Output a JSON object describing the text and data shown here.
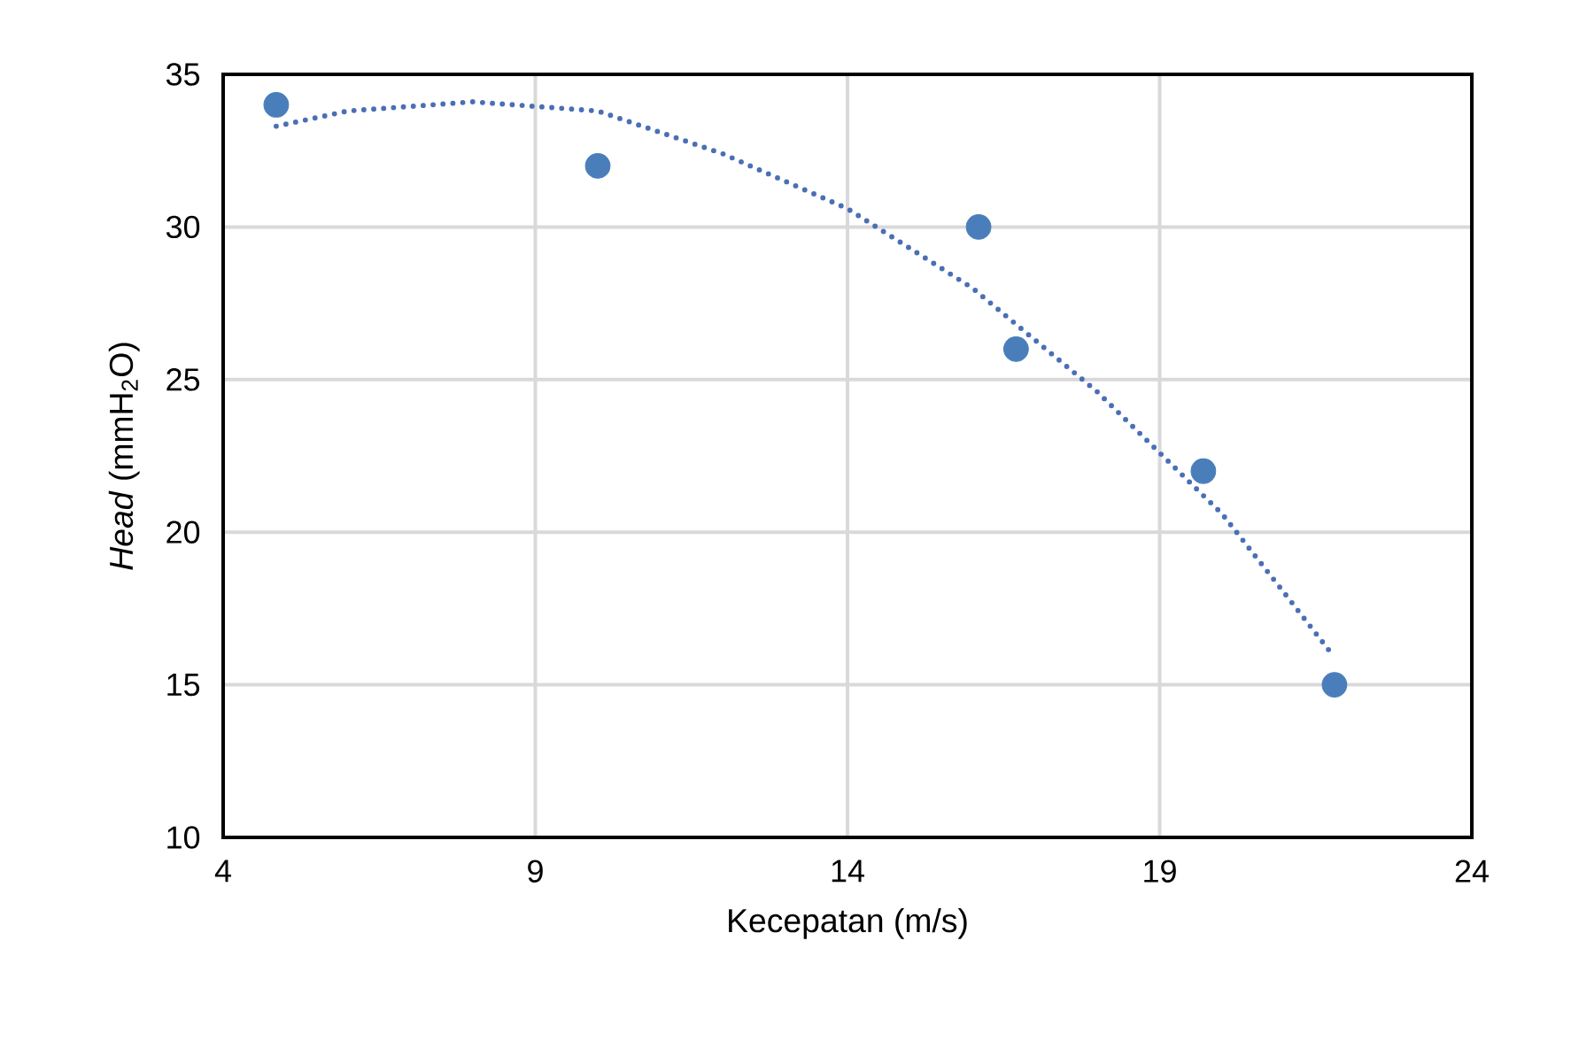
{
  "chart_data": {
    "type": "scatter",
    "xlabel": "Kecepatan (m/s)",
    "ylabel": "*Head* (mmH$_{2}$O)",
    "xlim": [
      4,
      24
    ],
    "xticks": [
      4,
      9,
      14,
      19,
      24
    ],
    "ylim": [
      10,
      35
    ],
    "yticks": [
      10,
      15,
      20,
      25,
      30,
      35
    ],
    "grid": true,
    "marker": "circle",
    "series": [
      {
        "color": "#4a7ebb",
        "x": [
          4.85,
          10.0,
          16.1,
          16.7,
          19.7,
          21.8
        ],
        "values": [
          34,
          32,
          30,
          26,
          22,
          15
        ]
      },
      {
        "type": "line",
        "color": "#4a6fb5",
        "line_style": "dotted",
        "marker": "none",
        "x": [
          4.85,
          6,
          8,
          10,
          12,
          14,
          16,
          18,
          19,
          20,
          21,
          21.8
        ],
        "values": [
          33.3,
          33.8,
          34.1,
          33.8,
          32.4,
          30.6,
          28.0,
          24.6,
          22.6,
          20.6,
          18.0,
          15.9
        ]
      }
    ]
  }
}
